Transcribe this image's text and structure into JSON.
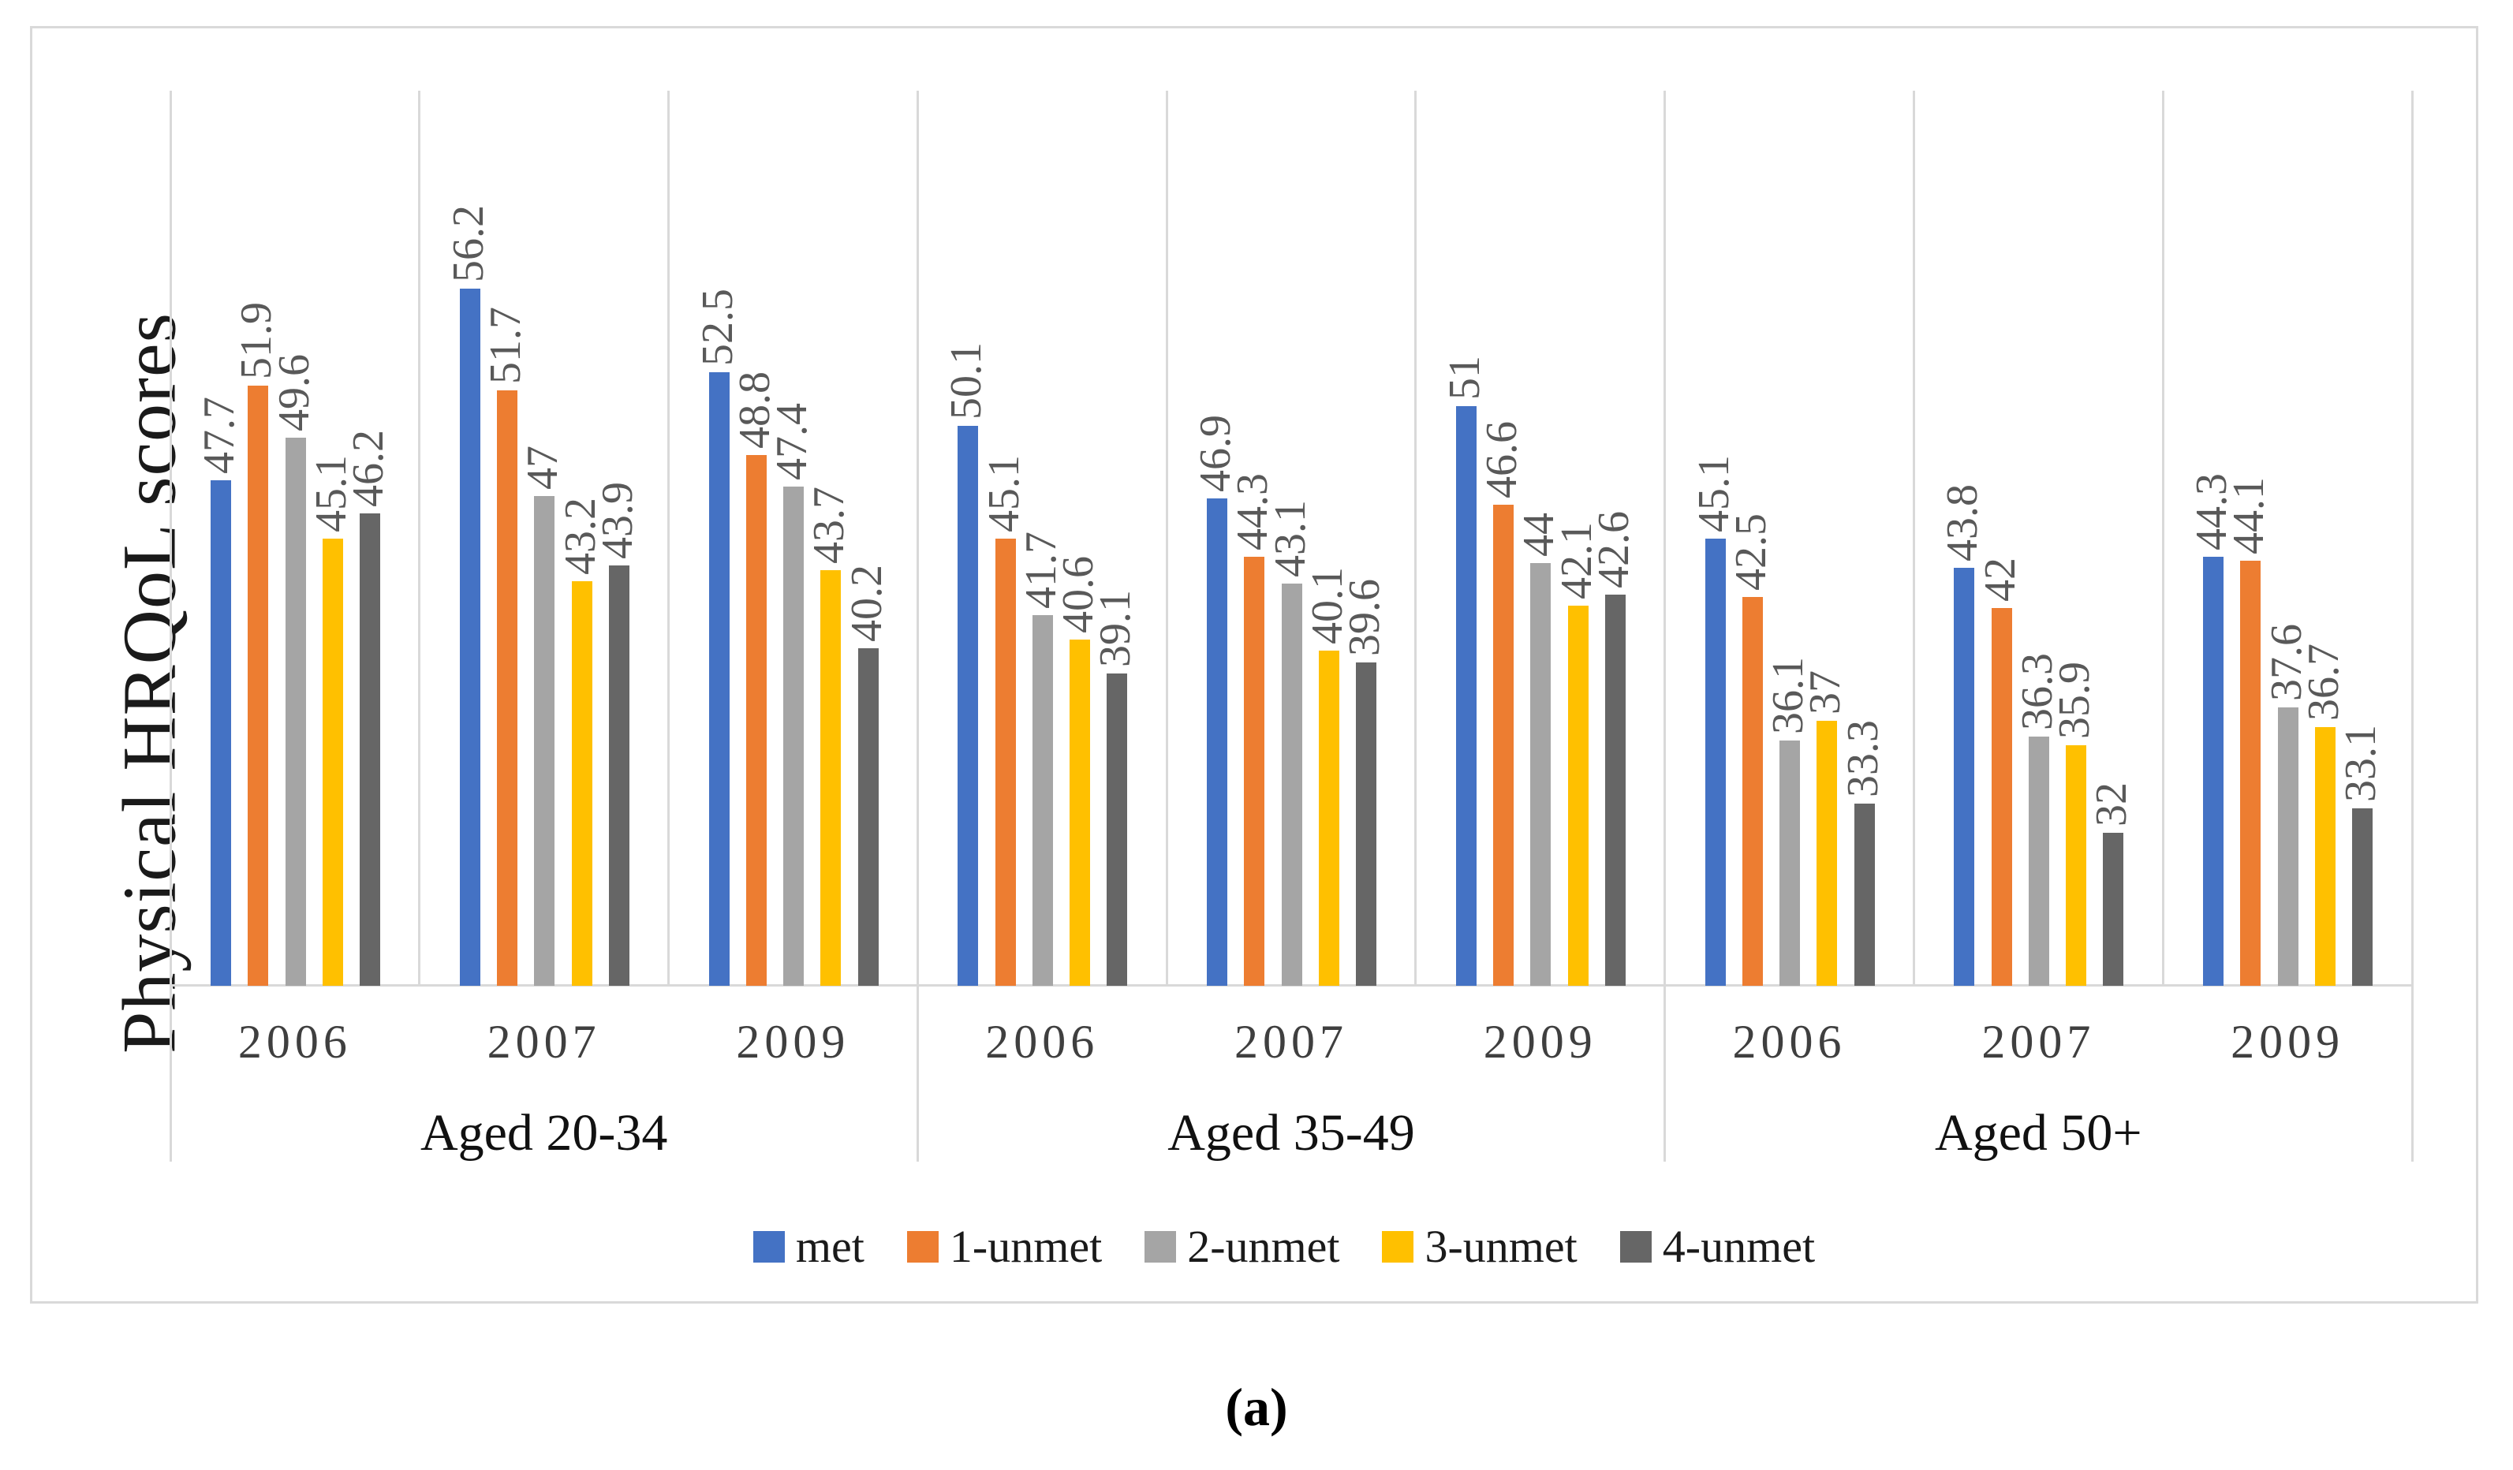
{
  "y_axis_label": "Physical HRQoL scores",
  "caption": "(a)",
  "chart_data": {
    "type": "bar",
    "title": "",
    "ylabel": "Physical HRQoL scores",
    "xlabel": "",
    "legend_position": "bottom",
    "grid": "vertical category separators only, no horizontal gridlines, no visible value axis ticks",
    "ylim_effective": [
      25.2,
      65
    ],
    "panels": [
      "Aged 20-34",
      "Aged 35-49",
      "Aged 50+"
    ],
    "years": [
      "2006",
      "2007",
      "2009"
    ],
    "series": [
      {
        "name": "met",
        "color": "#4472C4",
        "values": [
          [
            47.7,
            56.2,
            52.5
          ],
          [
            50.1,
            46.9,
            51
          ],
          [
            45.1,
            43.8,
            44.3
          ]
        ]
      },
      {
        "name": "1-unmet",
        "color": "#ED7D31",
        "values": [
          [
            51.9,
            51.7,
            48.8
          ],
          [
            45.1,
            44.3,
            46.6
          ],
          [
            42.5,
            42,
            44.1
          ]
        ]
      },
      {
        "name": "2-unmet",
        "color": "#A5A5A5",
        "values": [
          [
            49.6,
            47,
            47.4
          ],
          [
            41.7,
            43.1,
            44
          ],
          [
            36.1,
            36.3,
            37.6
          ]
        ]
      },
      {
        "name": "3-unmet",
        "color": "#FFC000",
        "values": [
          [
            45.1,
            43.2,
            43.7
          ],
          [
            40.6,
            40.1,
            42.1
          ],
          [
            37,
            35.9,
            36.7
          ]
        ]
      },
      {
        "name": "4-unmet",
        "color": "#666666",
        "values": [
          [
            46.2,
            43.9,
            40.2
          ],
          [
            39.1,
            39.6,
            42.6
          ],
          [
            33.3,
            32,
            33.1
          ]
        ]
      }
    ],
    "data_label_color": "#595959",
    "axis_line_color": "#d9d9d9",
    "year_label_color": "#3f3f3f",
    "age_label_color": "#111111"
  }
}
